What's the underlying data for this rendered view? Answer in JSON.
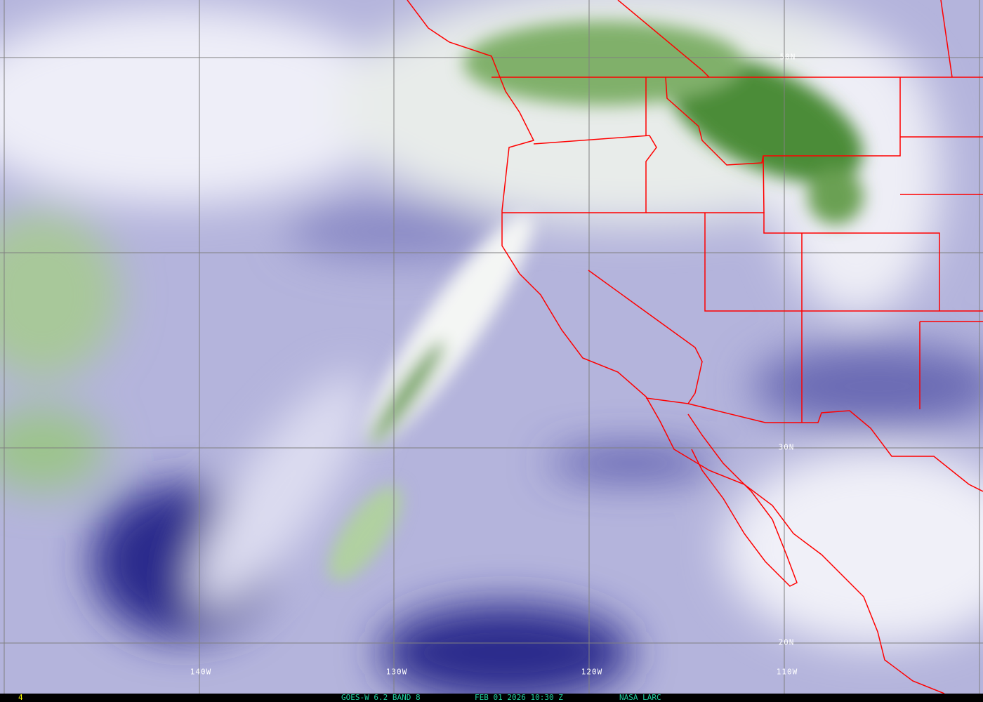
{
  "image": {
    "frame_number": "4",
    "satellite_label": "GOES-W 6.2 BAND 8",
    "datetime_label": "FEB 01 2026 10:30 Z",
    "credit_label": "NASA LARC"
  },
  "grid": {
    "lat_labels": [
      "50N",
      "30N",
      "20N"
    ],
    "lon_labels": [
      "140W",
      "130W",
      "120W",
      "110W"
    ]
  },
  "colors": {
    "border": "#ff0000",
    "dry": "#1a1a80",
    "moderate": "#a8a8d4",
    "moist_cloud": "#ffffff",
    "cold_cloud": "#3a7a2a",
    "gridline": "#808080",
    "frame_text": "#ffff00",
    "caption_text": "#20d0a0"
  }
}
